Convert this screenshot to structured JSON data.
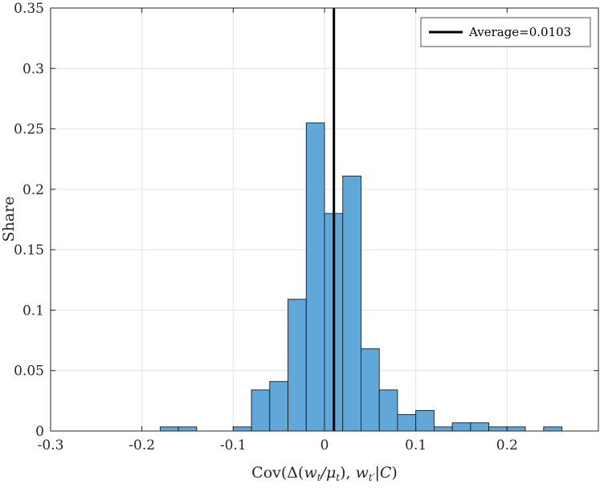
{
  "chart_data": {
    "type": "histogram",
    "title": "",
    "xlabel": "Cov(Δ(w_t/μ_t), w_t'|C)",
    "ylabel": "Share",
    "xlim": [
      -0.3,
      0.3
    ],
    "ylim": [
      0,
      0.35
    ],
    "xticks": [
      -0.3,
      -0.2,
      -0.1,
      0,
      0.1,
      0.2
    ],
    "xtick_labels": [
      "-0.3",
      "-0.2",
      "-0.1",
      "0",
      "0.1",
      "0.2"
    ],
    "yticks": [
      0,
      0.05,
      0.1,
      0.15,
      0.2,
      0.25,
      0.3,
      0.35
    ],
    "ytick_labels": [
      "0",
      "0.05",
      "0.1",
      "0.15",
      "0.2",
      "0.25",
      "0.3",
      "0.35"
    ],
    "grid": true,
    "bin_width": 0.02,
    "bar_color": "#5fa8d9",
    "bar_edge_color": "#1a1a1a",
    "bins": [
      {
        "x0": -0.18,
        "x1": -0.16,
        "value": 0.0034
      },
      {
        "x0": -0.16,
        "x1": -0.14,
        "value": 0.0034
      },
      {
        "x0": -0.14,
        "x1": -0.12,
        "value": 0
      },
      {
        "x0": -0.12,
        "x1": -0.1,
        "value": 0
      },
      {
        "x0": -0.1,
        "x1": -0.08,
        "value": 0.0034
      },
      {
        "x0": -0.08,
        "x1": -0.06,
        "value": 0.034
      },
      {
        "x0": -0.06,
        "x1": -0.04,
        "value": 0.041
      },
      {
        "x0": -0.04,
        "x1": -0.02,
        "value": 0.109
      },
      {
        "x0": -0.02,
        "x1": 0.0,
        "value": 0.255
      },
      {
        "x0": 0.0,
        "x1": 0.02,
        "value": 0.18
      },
      {
        "x0": 0.02,
        "x1": 0.04,
        "value": 0.211
      },
      {
        "x0": 0.04,
        "x1": 0.06,
        "value": 0.068
      },
      {
        "x0": 0.06,
        "x1": 0.08,
        "value": 0.034
      },
      {
        "x0": 0.08,
        "x1": 0.1,
        "value": 0.0136
      },
      {
        "x0": 0.1,
        "x1": 0.12,
        "value": 0.017
      },
      {
        "x0": 0.12,
        "x1": 0.14,
        "value": 0.0034
      },
      {
        "x0": 0.14,
        "x1": 0.16,
        "value": 0.0068
      },
      {
        "x0": 0.16,
        "x1": 0.18,
        "value": 0.0068
      },
      {
        "x0": 0.18,
        "x1": 0.2,
        "value": 0.0034
      },
      {
        "x0": 0.2,
        "x1": 0.22,
        "value": 0.0034
      },
      {
        "x0": 0.22,
        "x1": 0.24,
        "value": 0
      },
      {
        "x0": 0.24,
        "x1": 0.26,
        "value": 0.0034
      }
    ],
    "average": {
      "value": 0.0103,
      "label": "Average=0.0103",
      "color": "#000000"
    },
    "legend": {
      "position": "top-right",
      "entries": [
        "Average=0.0103"
      ]
    }
  }
}
